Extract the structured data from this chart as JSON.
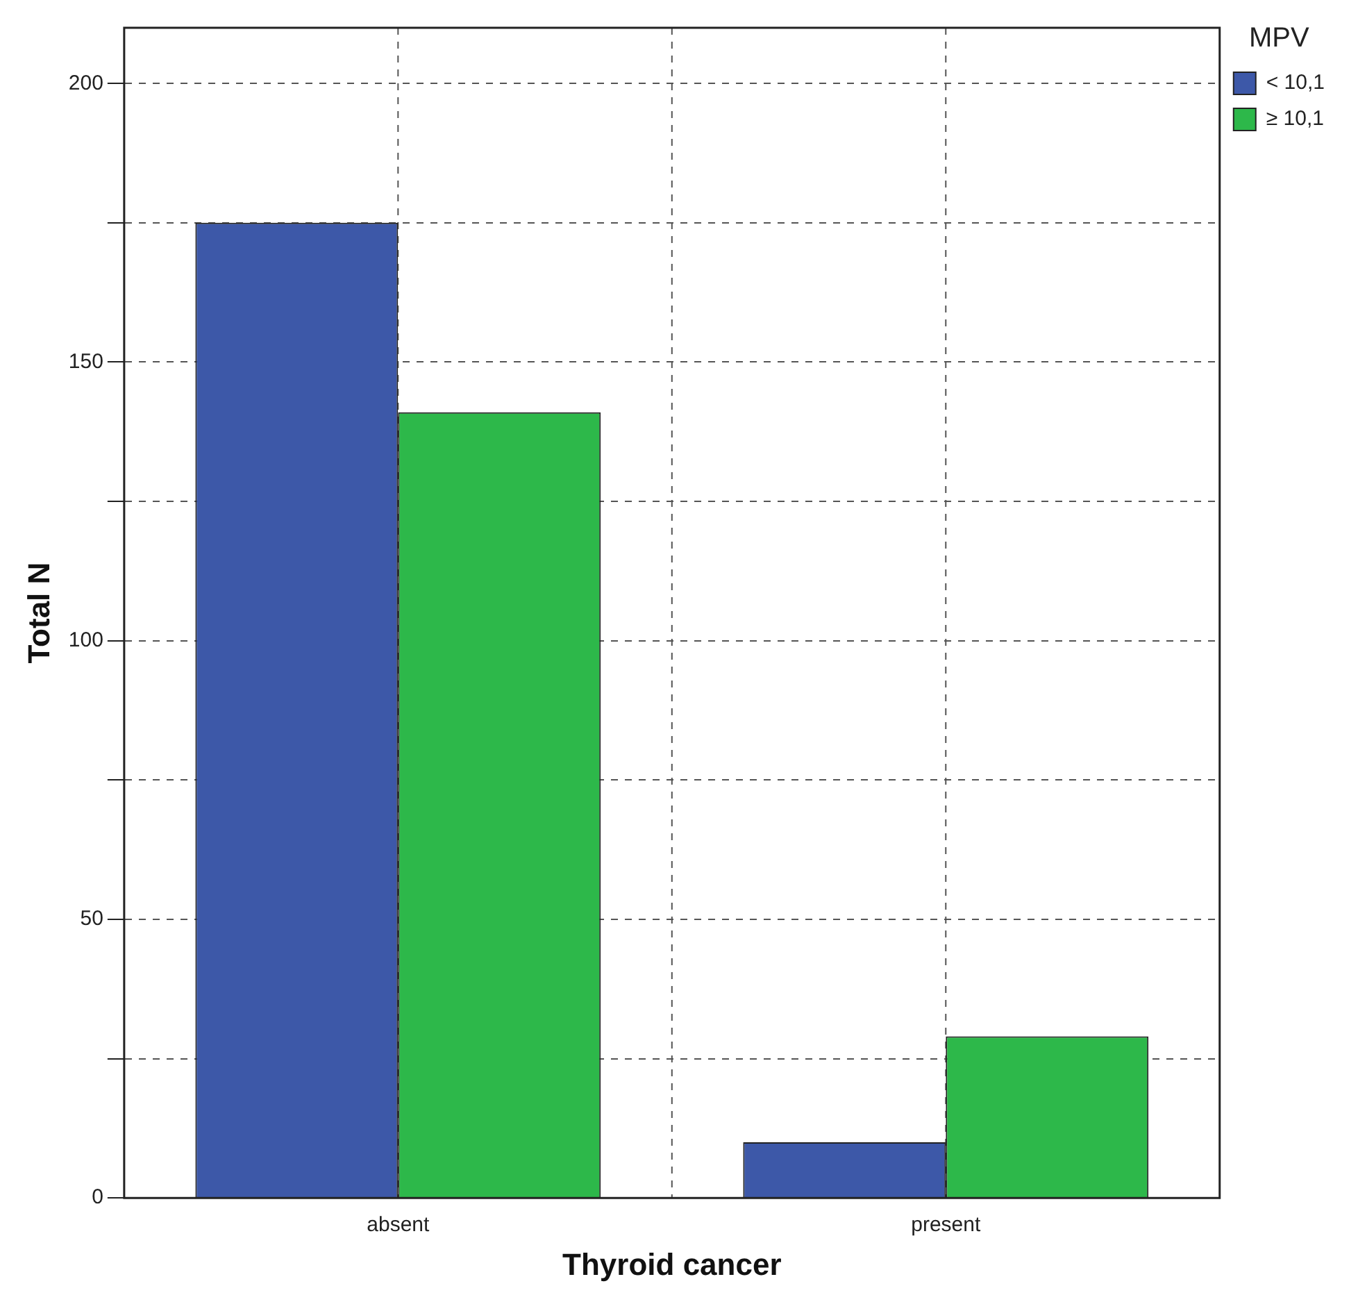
{
  "chart_data": {
    "type": "bar",
    "xlabel": "Thyroid cancer",
    "ylabel": "Total N",
    "legend_title": "MPV",
    "categories": [
      "absent",
      "present"
    ],
    "series": [
      {
        "name": "< 10,1",
        "color": "#3d58a8",
        "values": [
          175,
          10
        ]
      },
      {
        "name": "≥ 10,1",
        "color": "#2db84a",
        "values": [
          141,
          29
        ]
      }
    ],
    "ylim": [
      0,
      210
    ],
    "yticks": [
      0,
      {
        "value": 25,
        "label": null
      },
      50,
      {
        "value": 75,
        "label": null
      },
      100,
      {
        "value": 125,
        "label": null
      },
      150,
      {
        "value": 175,
        "label": null
      },
      200
    ],
    "grid": true,
    "legend": "top right"
  }
}
